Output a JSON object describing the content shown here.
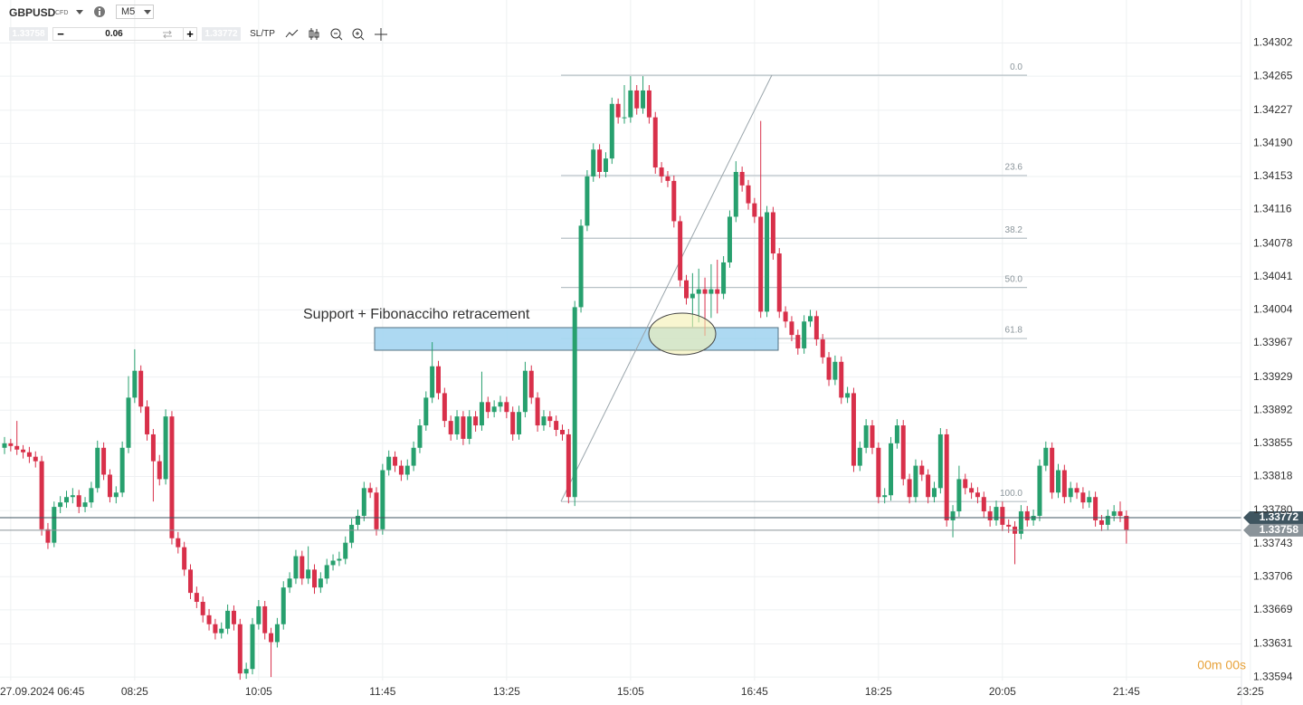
{
  "toolbar": {
    "symbol": "GBPUSD",
    "instrument": "CFD",
    "timeframe": "M5",
    "sell": "1.33758",
    "volume": "0.06",
    "buy": "1.33772",
    "sltp": "SL/TP"
  },
  "chart_data": {
    "type": "candlestick",
    "annotation": "Support + Fibonacciho retracement",
    "timer": "00m 00s",
    "up_color": "#27a06e",
    "down_color": "#d8304a",
    "grid": true,
    "ylim": [
      1.33582,
      1.3435
    ],
    "yticks": [
      1.34302,
      1.34265,
      1.34227,
      {
        "value": 1.3419,
        "label": "1.34190"
      },
      1.34153,
      1.34116,
      1.34078,
      1.34041,
      1.34004,
      1.33967,
      1.33929,
      1.33892,
      1.33855,
      1.33818,
      {
        "value": 1.3378,
        "label": "1.33780"
      },
      1.33743,
      1.33706,
      1.33669,
      1.33631,
      1.33594
    ],
    "price_lines": [
      {
        "value": 1.33772,
        "color": "#3f5560"
      },
      {
        "value": 1.33758,
        "color": "#8a9399"
      }
    ],
    "fibonacci": [
      {
        "label": "0.0",
        "value": 1.34266
      },
      {
        "label": "23.6",
        "value": 1.34154
      },
      {
        "label": "38.2",
        "value": 1.34084
      },
      {
        "label": "50.0",
        "value": 1.34029
      },
      {
        "label": "61.8",
        "value": 1.33972
      },
      {
        "label": "100.0",
        "value": 1.3379
      }
    ],
    "categories": [
      null,
      "27.09.2024 06:45",
      null,
      null,
      null,
      null,
      null,
      null,
      null,
      null,
      null,
      null,
      null,
      null,
      null,
      null,
      null,
      null,
      null,
      null,
      null,
      "08:25",
      null,
      null,
      null,
      null,
      null,
      null,
      null,
      null,
      null,
      null,
      null,
      null,
      null,
      null,
      null,
      null,
      null,
      null,
      null,
      "10:05",
      null,
      null,
      null,
      null,
      null,
      null,
      null,
      null,
      null,
      null,
      null,
      null,
      null,
      null,
      null,
      null,
      null,
      null,
      null,
      "11:45",
      null,
      null,
      null,
      null,
      null,
      null,
      null,
      null,
      null,
      null,
      null,
      null,
      null,
      null,
      null,
      null,
      null,
      null,
      null,
      "13:25",
      null,
      null,
      null,
      null,
      null,
      null,
      null,
      null,
      null,
      null,
      null,
      null,
      null,
      null,
      null,
      null,
      null,
      null,
      null,
      "15:05",
      null,
      null,
      null,
      null,
      null,
      null,
      null,
      null,
      null,
      null,
      null,
      null,
      null,
      null,
      null,
      null,
      null,
      null,
      null,
      "16:45",
      null,
      null,
      null,
      null,
      null,
      null,
      null,
      null,
      null,
      null,
      null,
      null,
      null,
      null,
      null,
      null,
      null,
      null,
      null,
      "18:25",
      null,
      null,
      null,
      null,
      null,
      null,
      null,
      null,
      null,
      null,
      null,
      null,
      null,
      null,
      null,
      null,
      null,
      null,
      null,
      "20:05",
      null,
      null,
      null,
      null,
      null,
      null,
      null,
      null,
      null,
      null,
      null,
      null,
      null,
      null,
      null,
      null,
      null,
      null,
      null,
      "21:45",
      null,
      null,
      null,
      null,
      null,
      null,
      null,
      null,
      null,
      null,
      null,
      null,
      null,
      null,
      null,
      null,
      null,
      null,
      null,
      "23:25"
    ],
    "open": [
      1.3385,
      1.33855,
      1.33852,
      1.33848,
      1.33845,
      1.3384,
      1.33835,
      1.33759,
      1.33744,
      1.33784,
      1.33789,
      1.33795,
      1.33797,
      1.33784,
      1.33789,
      1.33805,
      1.3385,
      1.3382,
      1.33795,
      1.338,
      1.3385,
      1.33906,
      1.33936,
      1.33896,
      1.33865,
      1.33835,
      1.33815,
      1.33885,
      1.33749,
      1.33739,
      1.33714,
      1.33688,
      1.33678,
      1.33663,
      1.33653,
      1.33643,
      1.33648,
      1.33668,
      1.33653,
      1.33598,
      1.33603,
      1.33653,
      1.33673,
      1.33643,
      1.33633,
      1.33653,
      1.33694,
      1.33704,
      1.33729,
      1.33704,
      1.33714,
      1.33694,
      1.33704,
      1.33719,
      1.33724,
      1.33726,
      1.33744,
      1.33764,
      1.33774,
      1.33805,
      1.338,
      1.33759,
      1.33825,
      1.3384,
      1.3383,
      1.3382,
      1.3383,
      1.3385,
      1.33875,
      1.33906,
      1.33941,
      1.33911,
      1.3388,
      1.33865,
      1.33885,
      1.3386,
      1.33885,
      1.33875,
      1.33901,
      1.3389,
      1.33896,
      1.33901,
      1.3389,
      1.33865,
      1.3389,
      1.33936,
      1.33906,
      1.33875,
      1.33885,
      1.3388,
      1.3387,
      1.33865,
      1.33795,
      1.34007,
      1.34098,
      1.34153,
      1.34183,
      1.34158,
      1.34173,
      1.34234,
      1.34219,
      1.34219,
      1.34249,
      1.34229,
      1.34249,
      1.34219,
      1.34163,
      1.34153,
      1.34148,
      1.34103,
      1.34037,
      1.34017,
      1.34022,
      1.34027,
      1.34022,
      1.34027,
      1.34022,
      1.34057,
      1.34108,
      1.34158,
      1.34143,
      1.34123,
      1.34108,
      1.34002,
      1.34113,
      1.34067,
      1.34002,
      1.33991,
      1.33976,
      1.33961,
      1.33991,
      1.33997,
      1.33971,
      1.33951,
      1.33926,
      1.33946,
      1.33906,
      1.33911,
      1.3383,
      1.3385,
      1.33875,
      1.3385,
      1.33795,
      1.33797,
      1.33855,
      1.33875,
      1.33815,
      1.33795,
      1.3383,
      1.3382,
      1.33795,
      1.33805,
      1.33865,
      1.33769,
      1.33779,
      1.33815,
      1.33805,
      1.338,
      1.33795,
      1.33779,
      1.33769,
      1.33784,
      1.33764,
      1.33762,
      1.33754,
      1.33779,
      1.33769,
      1.33774,
      1.3383,
      1.3385,
      1.338,
      1.33825,
      1.33795,
      1.33805,
      1.338,
      1.33789,
      1.33795,
      1.33769,
      1.33764,
      1.33774,
      1.33779,
      1.33774,
      null,
      null,
      null,
      null,
      null,
      null,
      null,
      null,
      null,
      null,
      null,
      null,
      null,
      null,
      null,
      null,
      null,
      null,
      null,
      null
    ],
    "high": [
      1.33862,
      1.3386,
      1.3388,
      1.33853,
      1.33851,
      1.33846,
      1.33841,
      1.33766,
      1.3379,
      1.33796,
      1.33802,
      1.33805,
      1.33803,
      1.33795,
      1.33812,
      1.33858,
      1.33856,
      1.33826,
      1.33807,
      1.33857,
      1.3393,
      1.3396,
      1.33942,
      1.33903,
      1.33871,
      1.33842,
      1.33893,
      1.33891,
      1.33756,
      1.33745,
      1.3372,
      1.33695,
      1.33684,
      1.3367,
      1.33659,
      1.33655,
      1.33675,
      1.33674,
      1.33659,
      1.3361,
      1.3366,
      1.3368,
      1.33679,
      1.33649,
      1.3366,
      1.33701,
      1.33711,
      1.33736,
      1.33735,
      1.3374,
      1.3372,
      1.33711,
      1.33726,
      1.33731,
      1.33734,
      1.33751,
      1.33771,
      1.33781,
      1.33812,
      1.33811,
      1.33806,
      1.33832,
      1.33847,
      1.33846,
      1.33836,
      1.33837,
      1.33857,
      1.33882,
      1.33913,
      1.33968,
      1.33947,
      1.33917,
      1.33886,
      1.33892,
      1.33891,
      1.33892,
      1.33891,
      1.33935,
      1.33907,
      1.33903,
      1.33908,
      1.33907,
      1.33896,
      1.33897,
      1.33946,
      1.33942,
      1.33912,
      1.33892,
      1.33891,
      1.33886,
      1.33876,
      1.33871,
      1.34014,
      1.34105,
      1.3416,
      1.3419,
      1.34189,
      1.3418,
      1.34241,
      1.3424,
      1.34255,
      1.34265,
      1.34255,
      1.34265,
      1.34255,
      1.34225,
      1.34169,
      1.34159,
      1.34154,
      1.34109,
      1.34043,
      1.34045,
      1.3405,
      1.3404,
      1.34055,
      1.3406,
      1.34064,
      1.34115,
      1.3417,
      1.34164,
      1.34149,
      1.34129,
      1.34215,
      1.3412,
      1.34119,
      1.34073,
      1.34008,
      1.33997,
      1.33982,
      1.33998,
      1.34004,
      1.34003,
      1.33977,
      1.33957,
      1.33953,
      1.33952,
      1.33918,
      1.33917,
      1.33857,
      1.33882,
      1.33881,
      1.33856,
      1.33805,
      1.33862,
      1.33882,
      1.33881,
      1.33821,
      1.33837,
      1.33836,
      1.33826,
      1.33812,
      1.33872,
      1.33871,
      1.33786,
      1.3383,
      1.33821,
      1.33811,
      1.33806,
      1.33801,
      1.33785,
      1.33791,
      1.3379,
      1.3377,
      1.33768,
      1.33786,
      1.33785,
      1.33781,
      1.33837,
      1.33857,
      1.33856,
      1.33832,
      1.33831,
      1.33812,
      1.33811,
      1.33806,
      1.33802,
      1.33801,
      1.33775,
      1.33781,
      1.33786,
      1.3379,
      1.3378,
      null,
      null,
      null,
      null,
      null,
      null,
      null,
      null,
      null,
      null,
      null,
      null,
      null,
      null,
      null,
      null,
      null,
      null,
      null,
      null
    ],
    "low": [
      1.33843,
      1.33846,
      1.33842,
      1.33838,
      1.33833,
      1.33828,
      1.33752,
      1.33737,
      1.33739,
      1.33777,
      1.33783,
      1.33788,
      1.33777,
      1.33778,
      1.33783,
      1.338,
      1.33814,
      1.33789,
      1.33788,
      1.33795,
      1.33844,
      1.339,
      1.33889,
      1.33858,
      1.3379,
      1.33808,
      1.33809,
      1.33742,
      1.33732,
      1.33707,
      1.33681,
      1.33671,
      1.33655,
      1.33646,
      1.33636,
      1.33637,
      1.33642,
      1.33646,
      1.33591,
      1.33592,
      1.33597,
      1.33647,
      1.33636,
      1.33594,
      1.33627,
      1.33647,
      1.33688,
      1.33698,
      1.33697,
      1.33698,
      1.33687,
      1.33688,
      1.33698,
      1.33713,
      1.33718,
      1.3372,
      1.33738,
      1.33758,
      1.33768,
      1.33794,
      1.33752,
      1.33753,
      1.33819,
      1.33823,
      1.33813,
      1.33814,
      1.33824,
      1.33844,
      1.33869,
      1.339,
      1.33904,
      1.33873,
      1.33858,
      1.33859,
      1.33853,
      1.33854,
      1.33868,
      1.33869,
      1.33883,
      1.33884,
      1.3389,
      1.33883,
      1.33858,
      1.33859,
      1.33884,
      1.33899,
      1.33868,
      1.33869,
      1.33873,
      1.33863,
      1.33858,
      1.33788,
      1.33785,
      1.34001,
      1.34092,
      1.34147,
      1.34151,
      1.34152,
      1.34167,
      1.34212,
      1.34212,
      1.34213,
      1.34222,
      1.34223,
      1.34212,
      1.34156,
      1.34146,
      1.34141,
      1.34096,
      1.3403,
      1.3401,
      1.33985,
      1.3399,
      1.33975,
      1.33995,
      1.34,
      1.34016,
      1.34051,
      1.34102,
      1.34136,
      1.34116,
      1.34101,
      1.33995,
      1.33996,
      1.3406,
      1.33995,
      1.33984,
      1.33969,
      1.33954,
      1.33955,
      1.33985,
      1.33964,
      1.33944,
      1.33919,
      1.3392,
      1.33899,
      1.339,
      1.33823,
      1.33824,
      1.33844,
      1.33843,
      1.33788,
      1.33788,
      1.33791,
      1.33849,
      1.33808,
      1.33788,
      1.33789,
      1.33813,
      1.33788,
      1.33789,
      1.33799,
      1.33762,
      1.3375,
      1.33773,
      1.33798,
      1.33793,
      1.33788,
      1.33772,
      1.33762,
      1.33763,
      1.33757,
      1.33755,
      1.3372,
      1.33748,
      1.33762,
      1.33763,
      1.33768,
      1.33824,
      1.33793,
      1.33794,
      1.33788,
      1.33789,
      1.33793,
      1.33782,
      1.33783,
      1.33762,
      1.33757,
      1.33758,
      1.33768,
      1.33767,
      1.33743,
      null,
      null,
      null,
      null,
      null,
      null,
      null,
      null,
      null,
      null,
      null,
      null,
      null,
      null,
      null,
      null,
      null,
      null,
      null,
      null
    ],
    "close": [
      1.33855,
      1.33852,
      1.33848,
      1.33845,
      1.3384,
      1.33835,
      1.33759,
      1.33744,
      1.33784,
      1.33789,
      1.33795,
      1.33797,
      1.33784,
      1.33789,
      1.33805,
      1.3385,
      1.3382,
      1.33795,
      1.338,
      1.3385,
      1.33906,
      1.33936,
      1.33896,
      1.33865,
      1.33835,
      1.33815,
      1.33885,
      1.33749,
      1.33739,
      1.33714,
      1.33688,
      1.33678,
      1.33663,
      1.33653,
      1.33643,
      1.33648,
      1.33668,
      1.33653,
      1.33598,
      1.33603,
      1.33653,
      1.33673,
      1.33643,
      1.33633,
      1.33653,
      1.33694,
      1.33704,
      1.33729,
      1.33704,
      1.33714,
      1.33694,
      1.33704,
      1.33719,
      1.33724,
      1.33726,
      1.33744,
      1.33764,
      1.33774,
      1.33805,
      1.338,
      1.33759,
      1.33825,
      1.3384,
      1.3383,
      1.3382,
      1.3383,
      1.3385,
      1.33875,
      1.33906,
      1.33941,
      1.33911,
      1.3388,
      1.33865,
      1.33885,
      1.3386,
      1.33885,
      1.33875,
      1.33901,
      1.3389,
      1.33896,
      1.33901,
      1.3389,
      1.33865,
      1.3389,
      1.33936,
      1.33906,
      1.33875,
      1.33885,
      1.3388,
      1.3387,
      1.33865,
      1.33795,
      1.34007,
      1.34098,
      1.34153,
      1.34183,
      1.34158,
      1.34173,
      1.34234,
      1.34219,
      1.34219,
      1.34249,
      1.34229,
      1.34249,
      1.34219,
      1.34163,
      1.34153,
      1.34148,
      1.34103,
      1.34037,
      1.34017,
      1.34022,
      1.34027,
      1.34022,
      1.34027,
      1.34022,
      1.34057,
      1.34108,
      1.34158,
      1.34143,
      1.34123,
      1.34108,
      1.34002,
      1.34113,
      1.34067,
      1.34002,
      1.33991,
      1.33976,
      1.33961,
      1.33991,
      1.33997,
      1.33971,
      1.33951,
      1.33926,
      1.33946,
      1.33906,
      1.33911,
      1.3383,
      1.3385,
      1.33875,
      1.3385,
      1.33795,
      1.33797,
      1.33855,
      1.33875,
      1.33815,
      1.33795,
      1.3383,
      1.3382,
      1.33795,
      1.33805,
      1.33865,
      1.33769,
      1.33779,
      1.33815,
      1.33805,
      1.338,
      1.33795,
      1.33779,
      1.33769,
      1.33784,
      1.33764,
      1.33762,
      1.33754,
      1.33779,
      1.33769,
      1.33774,
      1.3383,
      1.3385,
      1.338,
      1.33825,
      1.33795,
      1.33805,
      1.338,
      1.33789,
      1.33795,
      1.33769,
      1.33764,
      1.33774,
      1.33779,
      1.33774,
      1.33758,
      null,
      null,
      null,
      null,
      null,
      null,
      null,
      null,
      null,
      null,
      null,
      null,
      null,
      null,
      null,
      null,
      null,
      null,
      null,
      null
    ]
  }
}
